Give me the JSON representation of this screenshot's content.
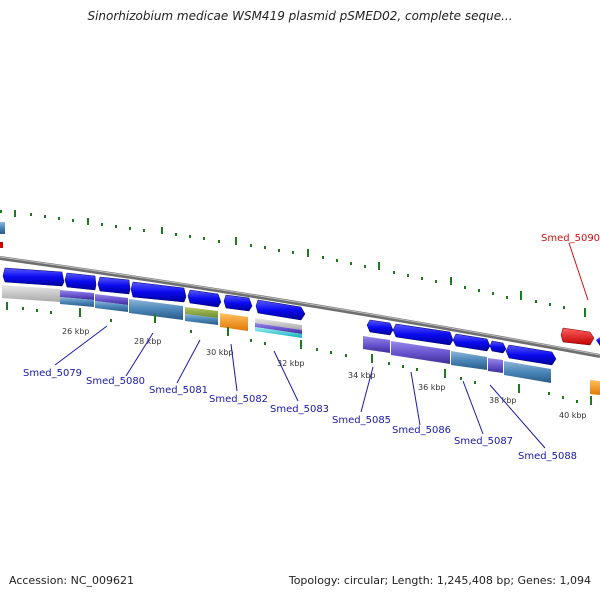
{
  "title": "Sinorhizobium medicae WSM419 plasmid pSMED02, complete seque...",
  "footer": {
    "accession": "Accession: NC_009621",
    "topology": "Topology: circular; Length: 1,245,408 bp; Genes: 1,094"
  },
  "ticks": [
    "26 kbp",
    "28 kbp",
    "30 kbp",
    "32 kbp",
    "34 kbp",
    "36 kbp",
    "38 kbp",
    "40 kbp"
  ],
  "genes": [
    {
      "id": "Smed_5079",
      "color": "#1a1aa8"
    },
    {
      "id": "Smed_5080",
      "color": "#1a1aa8"
    },
    {
      "id": "Smed_5081",
      "color": "#1a1aa8"
    },
    {
      "id": "Smed_5082",
      "color": "#1a1aa8"
    },
    {
      "id": "Smed_5083",
      "color": "#1a1aa8"
    },
    {
      "id": "Smed_5085",
      "color": "#1a1aa8"
    },
    {
      "id": "Smed_5086",
      "color": "#1a1aa8"
    },
    {
      "id": "Smed_5087",
      "color": "#1a1aa8"
    },
    {
      "id": "Smed_5088",
      "color": "#1a1aa8"
    },
    {
      "id": "Smed_5090",
      "color": "#cc1111"
    }
  ]
}
